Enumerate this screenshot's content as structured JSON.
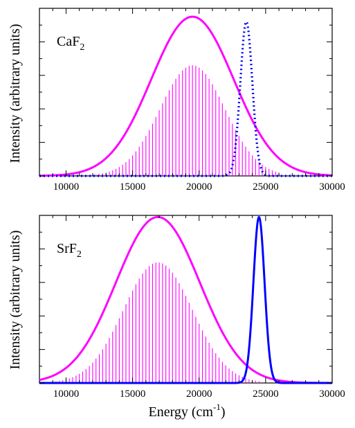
{
  "figure": {
    "xlabel": "Energy (cm",
    "xlabel_sup": "-1",
    "xlabel_close": ")",
    "ylabel": "Intensity (arbitrary units)"
  },
  "chart_data": [
    {
      "type": "line",
      "panel": "top",
      "label_main": "CaF",
      "label_sub": "2",
      "ylabel": "Intensity (arbitrary units)",
      "xlim": [
        8000,
        30000
      ],
      "ylim": [
        0,
        1.0
      ],
      "x_ticks": [
        10000,
        15000,
        20000,
        25000,
        30000
      ],
      "colors": {
        "envelope": "#ff00ff",
        "stick": "#ff00ff",
        "absorption": "#0000ff"
      },
      "envelope": {
        "center": 19500,
        "sigma": 3100,
        "peak": 0.95
      },
      "sticks": {
        "start": 10000,
        "end": 26200,
        "spacing": 250,
        "center": 19500,
        "sigma": 2450,
        "peak": 0.66,
        "line_style": "solid"
      },
      "absorption": {
        "center": 23550,
        "sigma": 450,
        "peak": 0.92,
        "line_style": "dotted"
      }
    },
    {
      "type": "line",
      "panel": "bottom",
      "label_main": "SrF",
      "label_sub": "2",
      "ylabel": "Intensity (arbitrary units)",
      "xlabel": "Energy (cm-1)",
      "xlim": [
        8000,
        30000
      ],
      "ylim": [
        0,
        1.0
      ],
      "x_ticks": [
        10000,
        15000,
        20000,
        25000,
        30000
      ],
      "colors": {
        "envelope": "#ff00ff",
        "stick": "#ff00ff",
        "absorption": "#0000ff"
      },
      "envelope": {
        "center": 16900,
        "sigma": 3150,
        "peak": 0.99
      },
      "sticks": {
        "start": 8500,
        "end": 24500,
        "spacing": 250,
        "center": 16900,
        "sigma": 2600,
        "peak": 0.72,
        "line_style": "solid"
      },
      "absorption": {
        "center": 24500,
        "sigma": 420,
        "peak": 0.99,
        "line_style": "solid"
      }
    }
  ]
}
